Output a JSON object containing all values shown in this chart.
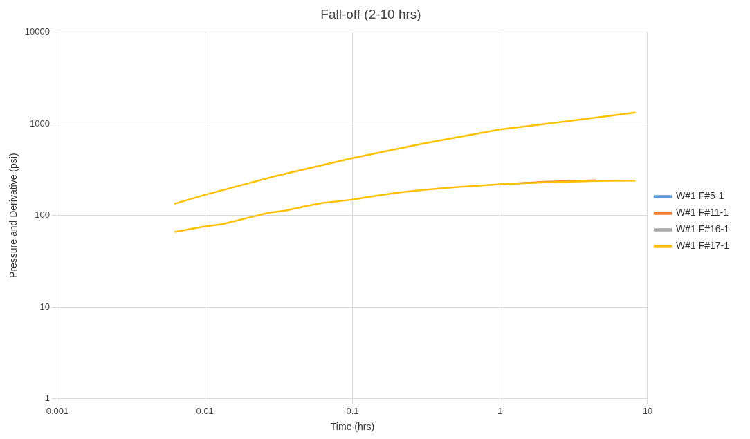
{
  "chart_data": {
    "type": "line",
    "title": "Fall-off (2-10 hrs)",
    "xlabel": "Time (hrs)",
    "ylabel": "Pressure and Derivative (psi)",
    "log": "xy",
    "grid": true,
    "legend": "right",
    "marker": "none",
    "line_style": "solid",
    "xlim": [
      0.001,
      10
    ],
    "xticks": [
      0.001,
      0.01,
      0.1,
      1,
      10
    ],
    "ylim": [
      1,
      10000
    ],
    "yticks": [
      1,
      10,
      100,
      1000,
      10000
    ],
    "x": [
      0.0062,
      0.01,
      0.03,
      0.1,
      0.3,
      1,
      3,
      8.3,
      null,
      0.0062,
      0.01,
      0.013,
      0.02,
      0.027,
      0.035,
      0.05,
      0.063,
      0.08,
      0.1,
      0.13,
      0.2,
      0.3,
      0.5,
      1,
      2,
      4.5,
      8.3
    ],
    "series": [
      {
        "name": "W#1 F#5-1",
        "color": "#5b9bd5",
        "values": [
          null,
          null,
          null,
          null,
          null,
          null,
          null,
          null,
          null,
          null,
          null,
          null,
          null,
          null,
          null,
          null,
          null,
          null,
          null,
          null,
          null,
          null,
          null,
          null,
          null,
          null,
          null
        ]
      },
      {
        "name": "W#1 F#11-1",
        "color": "#ed7d31",
        "values": [
          null,
          null,
          null,
          null,
          null,
          null,
          null,
          null,
          null,
          null,
          null,
          null,
          null,
          null,
          null,
          null,
          null,
          null,
          null,
          null,
          null,
          null,
          null,
          219,
          233,
          243,
          null
        ]
      },
      {
        "name": "W#1 F#16-1",
        "color": "#a5a5a5",
        "values": [
          null,
          null,
          null,
          null,
          null,
          null,
          null,
          null,
          null,
          null,
          null,
          null,
          null,
          null,
          null,
          null,
          null,
          null,
          null,
          null,
          null,
          null,
          null,
          null,
          null,
          null,
          null
        ]
      },
      {
        "name": "W#1 F#17-1",
        "color": "#ffc000",
        "values": [
          134,
          168,
          269,
          423,
          610,
          870,
          1081,
          1333,
          null,
          66,
          76,
          80,
          95,
          107,
          113,
          128,
          137,
          143,
          149,
          160,
          177,
          190,
          204,
          219,
          230,
          238,
          240
        ]
      }
    ]
  }
}
